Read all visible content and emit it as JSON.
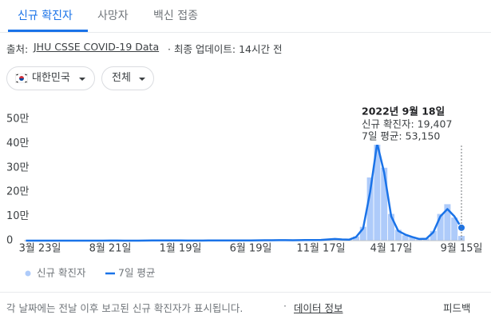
{
  "tabs": [
    "신규 확진자",
    "사망자",
    "백신 접종"
  ],
  "source": {
    "label": "출처:",
    "link": "JHU CSSE COVID-19 Data",
    "updated": "· 최종 업데이트: 14시간 전"
  },
  "filters": [
    "대한민국",
    "전체"
  ],
  "chart_data": {
    "type": "combo",
    "categories": [
      null,
      null,
      "3월 23일",
      null,
      null,
      null,
      null,
      null,
      null,
      null,
      null,
      null,
      "8월 21일",
      null,
      null,
      null,
      null,
      null,
      null,
      null,
      null,
      null,
      "1월 19일",
      null,
      null,
      null,
      null,
      null,
      null,
      null,
      null,
      null,
      "6월 19일",
      null,
      null,
      null,
      null,
      null,
      null,
      null,
      null,
      null,
      "11월 17일",
      null,
      null,
      null,
      null,
      null,
      null,
      null,
      null,
      null,
      "4월 17일",
      null,
      null,
      null,
      null,
      null,
      null,
      null,
      null,
      null,
      "9월 15일"
    ],
    "series": [
      {
        "name": "신규 확진자",
        "color": "#aecbfa",
        "type": "bar",
        "values": [
          0,
          20,
          80,
          120,
          100,
          40,
          50,
          30,
          60,
          20,
          70,
          120,
          280,
          300,
          100,
          130,
          90,
          250,
          450,
          1000,
          1100,
          700,
          550,
          400,
          350,
          500,
          450,
          600,
          550,
          700,
          650,
          600,
          550,
          1300,
          1600,
          2000,
          1800,
          2200,
          1500,
          2300,
          2400,
          2800,
          3200,
          5500,
          7500,
          4500,
          4300,
          17000,
          57000,
          260000,
          420000,
          300000,
          110000,
          45000,
          22000,
          16000,
          6500,
          9000,
          40000,
          110000,
          150000,
          95000,
          19407
        ]
      },
      {
        "name": "7일 평균",
        "color": "#1a73e8",
        "type": "line",
        "values": [
          0,
          10,
          100,
          150,
          80,
          50,
          40,
          40,
          40,
          30,
          50,
          100,
          300,
          250,
          120,
          100,
          110,
          200,
          500,
          900,
          1000,
          800,
          500,
          420,
          400,
          450,
          500,
          550,
          600,
          650,
          700,
          550,
          600,
          1200,
          1700,
          1800,
          1900,
          2000,
          1700,
          2100,
          2500,
          2600,
          3000,
          5000,
          7000,
          5000,
          4000,
          15000,
          50000,
          200000,
          400000,
          280000,
          100000,
          40000,
          25000,
          15000,
          7000,
          8000,
          35000,
          100000,
          130000,
          100000,
          53150
        ]
      }
    ],
    "ylim": [
      0,
      500000
    ],
    "yticks": [
      0,
      {
        "value": 100000,
        "label": "10만"
      },
      {
        "value": 200000,
        "label": "20만"
      },
      {
        "value": 300000,
        "label": "30만"
      },
      {
        "value": 400000,
        "label": "40만"
      },
      {
        "value": 500000,
        "label": "50만"
      }
    ],
    "grid": false,
    "tooltip": {
      "date": "2022년 9월 18일",
      "lines": [
        "신규 확진자: 19,407",
        "7일 평균: 53,150"
      ]
    }
  },
  "footer": {
    "note": "각 날짜에는 전날 이후 보고된 신규 확진자가 표시됩니다.",
    "separator": "·",
    "link": "데이터 정보",
    "feedback": "피드백"
  }
}
